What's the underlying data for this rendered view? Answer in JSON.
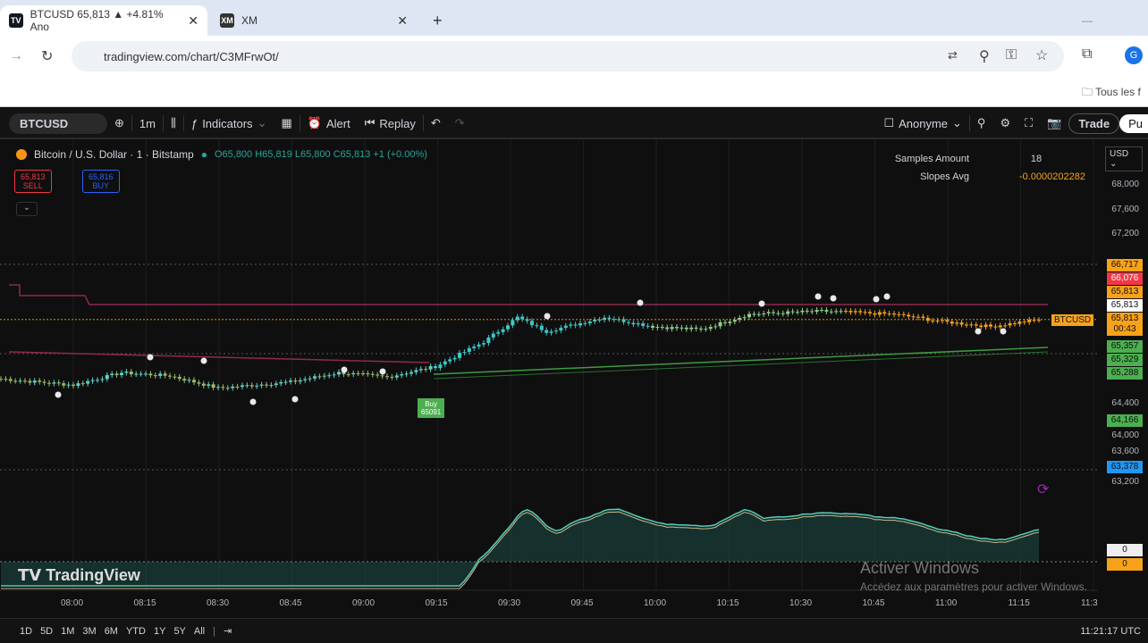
{
  "browser": {
    "tabs": [
      {
        "title": "BTCUSD 65,813 ▲ +4.81% Ano",
        "icon": "TV"
      },
      {
        "title": "XM",
        "icon": "XM"
      }
    ],
    "url": "tradingview.com/chart/C3MFrwOt/",
    "bookmark": "Tous les f"
  },
  "toolbar": {
    "symbol": "BTCUSD",
    "interval": "1m",
    "indicators": "Indicators",
    "alert": "Alert",
    "replay": "Replay",
    "layout": "Anonyme",
    "trade": "Trade",
    "publish": "Pu"
  },
  "legend": {
    "title": "Bitcoin / U.S. Dollar · 1 · Bitstamp",
    "o": "O65,800",
    "h": "H65,819",
    "l": "L65,800",
    "c": "C65,813",
    "chg": "+1 (+0.00%)",
    "sell_price": "65,813",
    "sell": "SELL",
    "buy_price": "65,816",
    "buy": "BUY"
  },
  "indicator_table": {
    "rows": [
      {
        "label": "Samples Amount",
        "value": "18"
      },
      {
        "label": "Slopes Avg",
        "value": "-0.0000202282"
      }
    ]
  },
  "currency": "USD",
  "price_axis": {
    "ticks": [
      "68,000",
      "67,600",
      "67,200",
      "64,400",
      "64,000",
      "63,600",
      "63,200"
    ]
  },
  "price_badges": [
    {
      "value": "66,717",
      "color": "#f7a21b"
    },
    {
      "value": "66,076",
      "color": "#f23645"
    },
    {
      "value": "65,813",
      "color": "#f7a21b"
    },
    {
      "value": "65,813",
      "color": "#ffffff"
    },
    {
      "value": "65,813",
      "sub": "00:43",
      "color": "#f7a21b",
      "tag": "BTCUSD"
    },
    {
      "value": "65,357",
      "color": "#4caf50"
    },
    {
      "value": "65,329",
      "color": "#4caf50"
    },
    {
      "value": "65,288",
      "color": "#4caf50"
    },
    {
      "value": "64,166",
      "color": "#4caf50"
    },
    {
      "value": "63,378",
      "color": "#2196f3"
    }
  ],
  "buy_signal": {
    "label": "Buy",
    "sub": "65091"
  },
  "osc_badges": [
    "0",
    "0"
  ],
  "time_axis": [
    "08:00",
    "08:15",
    "08:30",
    "08:45",
    "09:00",
    "09:15",
    "09:30",
    "09:45",
    "10:00",
    "10:15",
    "10:30",
    "10:45",
    "11:00",
    "11:15",
    "11:3"
  ],
  "chart_data": {
    "type": "candlestick",
    "price_path": [
      [
        "07:45",
        64850
      ],
      [
        "08:00",
        64750
      ],
      [
        "08:10",
        64950
      ],
      [
        "08:20",
        64900
      ],
      [
        "08:30",
        64700
      ],
      [
        "08:45",
        64800
      ],
      [
        "08:55",
        64950
      ],
      [
        "09:05",
        64880
      ],
      [
        "09:15",
        65050
      ],
      [
        "09:25",
        65450
      ],
      [
        "09:32",
        65850
      ],
      [
        "09:38",
        65620
      ],
      [
        "09:50",
        65850
      ],
      [
        "10:00",
        65700
      ],
      [
        "10:10",
        65650
      ],
      [
        "10:20",
        65900
      ],
      [
        "10:35",
        65950
      ],
      [
        "10:50",
        65900
      ],
      [
        "11:00",
        65780
      ],
      [
        "11:10",
        65700
      ],
      [
        "11:20",
        65813
      ]
    ]
  },
  "ranges": [
    "1D",
    "5D",
    "1M",
    "3M",
    "6M",
    "YTD",
    "1Y",
    "5Y",
    "All"
  ],
  "clock": "11:21:17 UTC",
  "watermark": "TradingView",
  "activation": {
    "title": "Activer Windows",
    "sub": "Accédez aux paramètres pour activer Windows."
  }
}
